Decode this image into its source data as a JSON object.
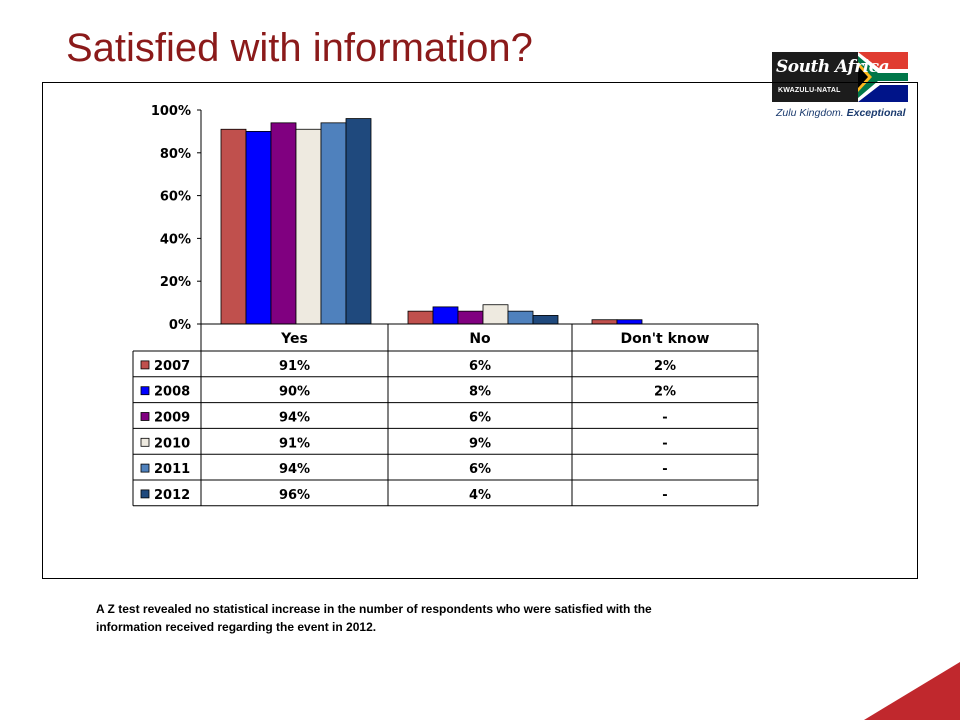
{
  "slide": {
    "title": "Satisfied with information?",
    "footnote": "A Z test revealed no statistical increase in the number of respondents who were satisfied with the information received regarding the event in 2012."
  },
  "logo": {
    "name": "South Africa",
    "region": "KWAZULU-NATAL",
    "tagline_main": "Zulu Kingdom.",
    "tagline_emph": "Exceptional"
  },
  "chart_data": {
    "type": "bar",
    "categories": [
      "Yes",
      "No",
      "Don't know"
    ],
    "y_ticks": [
      "0%",
      "20%",
      "40%",
      "60%",
      "80%",
      "100%"
    ],
    "ylim": [
      0,
      100
    ],
    "grid": false,
    "legend": "table-below",
    "series": [
      {
        "name": "2007",
        "values": [
          91,
          6,
          2
        ],
        "labels": [
          "91%",
          "6%",
          "2%"
        ],
        "color": "#c0504d"
      },
      {
        "name": "2008",
        "values": [
          90,
          8,
          2
        ],
        "labels": [
          "90%",
          "8%",
          "2%"
        ],
        "color": "#0000ff"
      },
      {
        "name": "2009",
        "values": [
          94,
          6,
          0
        ],
        "labels": [
          "94%",
          "6%",
          "-"
        ],
        "color": "#800080"
      },
      {
        "name": "2010",
        "values": [
          91,
          9,
          0
        ],
        "labels": [
          "91%",
          "9%",
          "-"
        ],
        "color": "#eeeae0"
      },
      {
        "name": "2011",
        "values": [
          94,
          6,
          0
        ],
        "labels": [
          "94%",
          "6%",
          "-"
        ],
        "color": "#4f81bd"
      },
      {
        "name": "2012",
        "values": [
          96,
          4,
          0
        ],
        "labels": [
          "96%",
          "4%",
          "-"
        ],
        "color": "#1f497d"
      }
    ]
  },
  "colors": {
    "title": "#8b1a1a",
    "accent": "#c0282d"
  }
}
